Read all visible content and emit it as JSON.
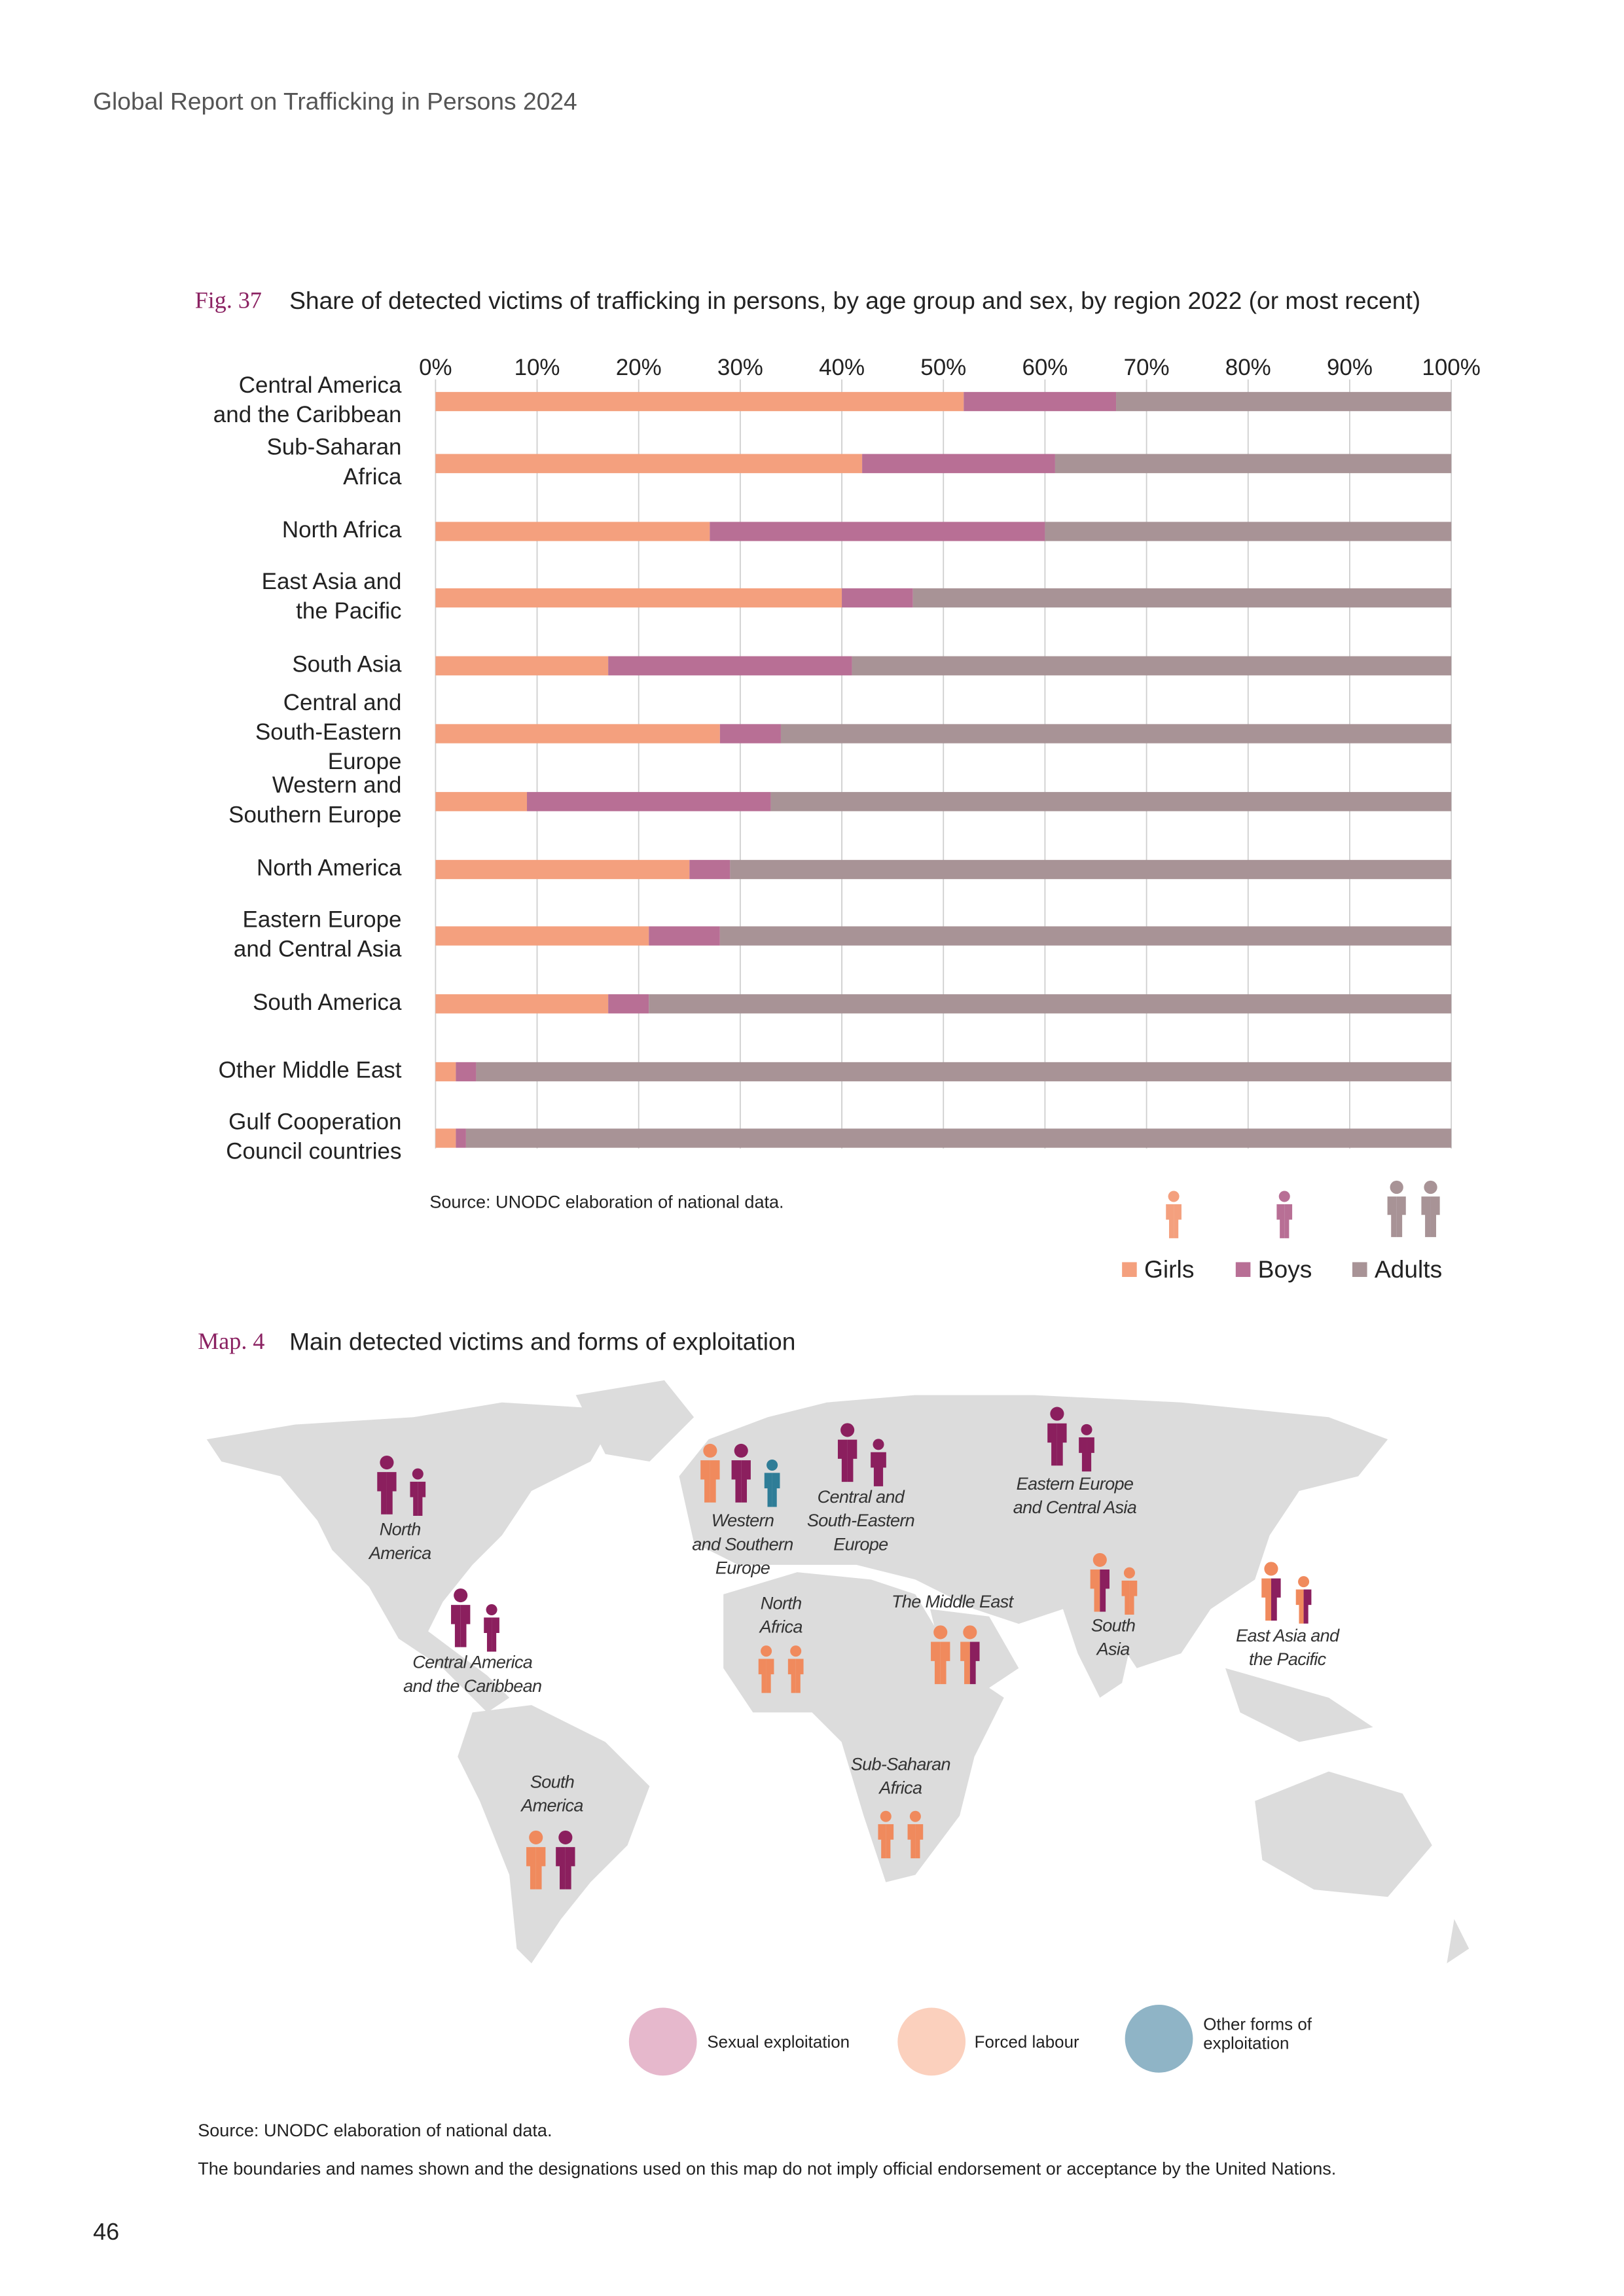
{
  "header": {
    "title": "Global Report on Trafficking in Persons 2024"
  },
  "chart_data": {
    "type": "bar",
    "orientation": "horizontal",
    "stacked": true,
    "label": "Fig. 37",
    "title": "Share of detected victims of trafficking in persons, by age group and sex, by region 2022 (or most recent)",
    "categories": [
      "Central America\nand the Caribbean",
      "Sub-Saharan\nAfrica",
      "North Africa",
      "East Asia and\nthe Pacific",
      "South Asia",
      "Central and\nSouth-Eastern\nEurope",
      "Western and\nSouthern Europe",
      "North America",
      "Eastern Europe\nand Central Asia",
      "South America",
      "Other Middle East",
      "Gulf Cooperation\nCouncil countries"
    ],
    "series": [
      {
        "name": "Girls",
        "color": "#f4a07e",
        "values": [
          52,
          42,
          27,
          40,
          17,
          28,
          9,
          25,
          21,
          17,
          2,
          2
        ]
      },
      {
        "name": "Boys",
        "color": "#b86f95",
        "values": [
          15,
          19,
          33,
          7,
          24,
          6,
          24,
          4,
          7,
          4,
          2,
          1
        ]
      },
      {
        "name": "Adults",
        "color": "#a89396",
        "values": [
          33,
          39,
          40,
          53,
          59,
          66,
          67,
          71,
          72,
          79,
          96,
          97
        ]
      }
    ],
    "xlim": [
      0,
      100
    ],
    "xticks": [
      {
        "value": 0,
        "label": "0%"
      },
      {
        "value": 10,
        "label": "10%"
      },
      {
        "value": 20,
        "label": "20%"
      },
      {
        "value": 30,
        "label": "30%"
      },
      {
        "value": 40,
        "label": "40%"
      },
      {
        "value": 50,
        "label": "50%"
      },
      {
        "value": 60,
        "label": "60%"
      },
      {
        "value": 70,
        "label": "70%"
      },
      {
        "value": 80,
        "label": "80%"
      },
      {
        "value": 90,
        "label": "90%"
      },
      {
        "value": 100,
        "label": "100%"
      }
    ],
    "grid": true,
    "legend": "bottom-right",
    "source": "Source: UNODC elaboration of national data."
  },
  "map": {
    "label": "Map. 4",
    "title": "Main detected victims and forms of exploitation",
    "regions": [
      "North\nAmerica",
      "Central America\nand the Caribbean",
      "Western\nand Southern\nEurope",
      "Central and\nSouth-Eastern\nEurope",
      "Eastern Europe\nand Central Asia",
      "North\nAfrica",
      "The Middle East",
      "South\nAsia",
      "East Asia and\nthe Pacific",
      "Sub-Saharan\nAfrica",
      "South\nAmerica"
    ],
    "legend": [
      "Sexual exploitation",
      "Forced labour",
      "Other forms of\nexploitation"
    ],
    "source": "Source: UNODC elaboration of national data.",
    "disclaimer": "The boundaries and names shown and the designations used on this map do not imply official endorsement or acceptance by the United Nations."
  },
  "page_number": "46"
}
